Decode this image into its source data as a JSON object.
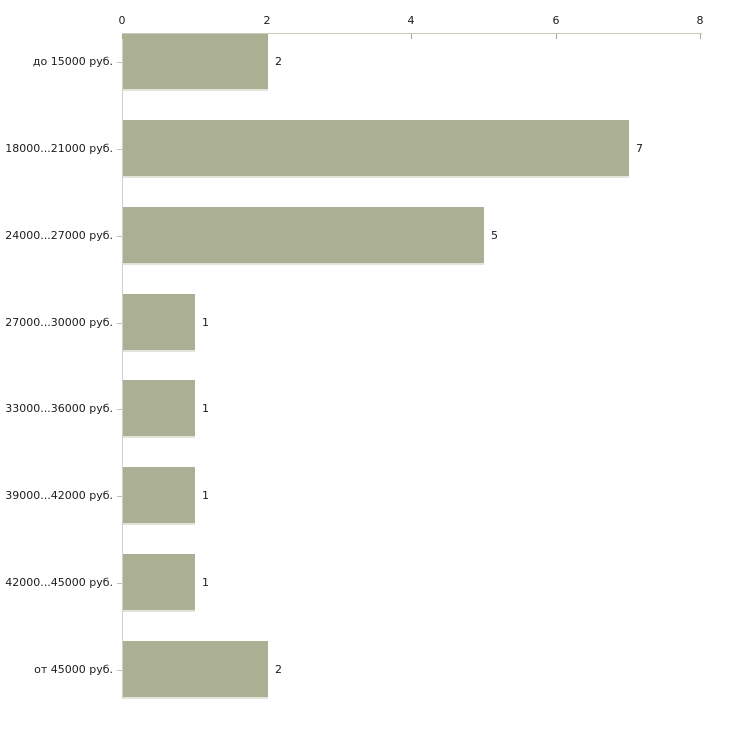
{
  "chart_data": {
    "type": "bar",
    "orientation": "horizontal",
    "title": "",
    "xlabel": "",
    "ylabel": "",
    "categories": [
      "до 15000 руб.",
      "18000...21000 руб.",
      "24000...27000 руб.",
      "27000...30000 руб.",
      "33000...36000 руб.",
      "39000...42000 руб.",
      "42000...45000 руб.",
      "от 45000 руб."
    ],
    "values": [
      2,
      7,
      5,
      1,
      1,
      1,
      1,
      2
    ],
    "x_ticks": [
      0,
      2,
      4,
      6,
      8
    ],
    "xlim": [
      0,
      8
    ],
    "grid": false,
    "legend": false,
    "value_labels_shown": true
  },
  "colors": {
    "background": "#ffffff",
    "bar": "#abaf93",
    "bar_bottom_edge": "#e2e4d9",
    "x_axis_line": "#c8cbb8",
    "y_axis_line": "#cfcfcf",
    "x_tick_mark": "#a4a88c",
    "y_tick_mark": "#c2c2c2",
    "text": "#1c1c1c"
  }
}
